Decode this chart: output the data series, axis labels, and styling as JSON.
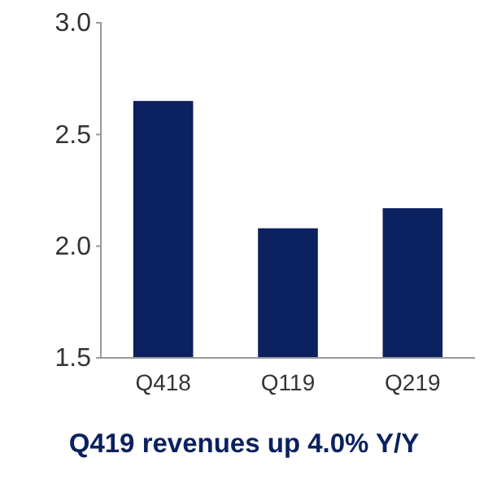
{
  "chart_data": {
    "type": "bar",
    "title": "Q419 revenues up 4.0% Y/Y",
    "categories": [
      "Q418",
      "Q119",
      "Q219"
    ],
    "values": [
      2.65,
      2.08,
      2.17
    ],
    "color": "#0b2160",
    "ylim": [
      1.5,
      3.0
    ],
    "yticks": [
      1.5,
      {
        "value": 2,
        "label": "2.0"
      },
      2.5,
      {
        "value": 3,
        "label": "3.0"
      }
    ],
    "grid": false
  }
}
